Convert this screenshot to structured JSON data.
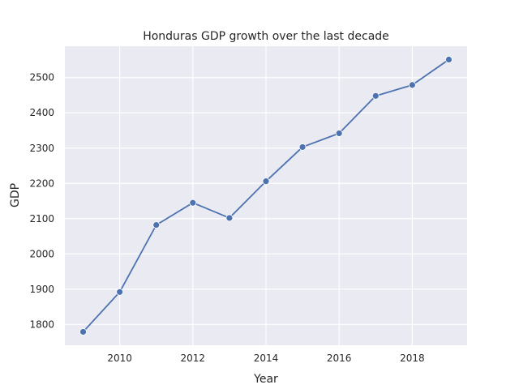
{
  "chart_data": {
    "type": "line",
    "title": "Honduras GDP growth over the last decade",
    "xlabel": "Year",
    "ylabel": "GDP",
    "x": [
      2009,
      2010,
      2011,
      2012,
      2013,
      2014,
      2015,
      2016,
      2017,
      2018,
      2019
    ],
    "series": [
      {
        "values": [
          1779,
          1892,
          2082,
          2145,
          2102,
          2206,
          2303,
          2342,
          2448,
          2479,
          2551
        ]
      }
    ],
    "xticks": [
      2010,
      2012,
      2014,
      2016,
      2018
    ],
    "yticks": [
      1800,
      1900,
      2000,
      2100,
      2200,
      2300,
      2400,
      2500
    ],
    "xlim": [
      2008.5,
      2019.5
    ],
    "ylim": [
      1741,
      2589
    ],
    "grid": true,
    "colors": {
      "line": "#4c72b0",
      "background": "#eaeaf2",
      "grid": "#ffffff"
    }
  }
}
